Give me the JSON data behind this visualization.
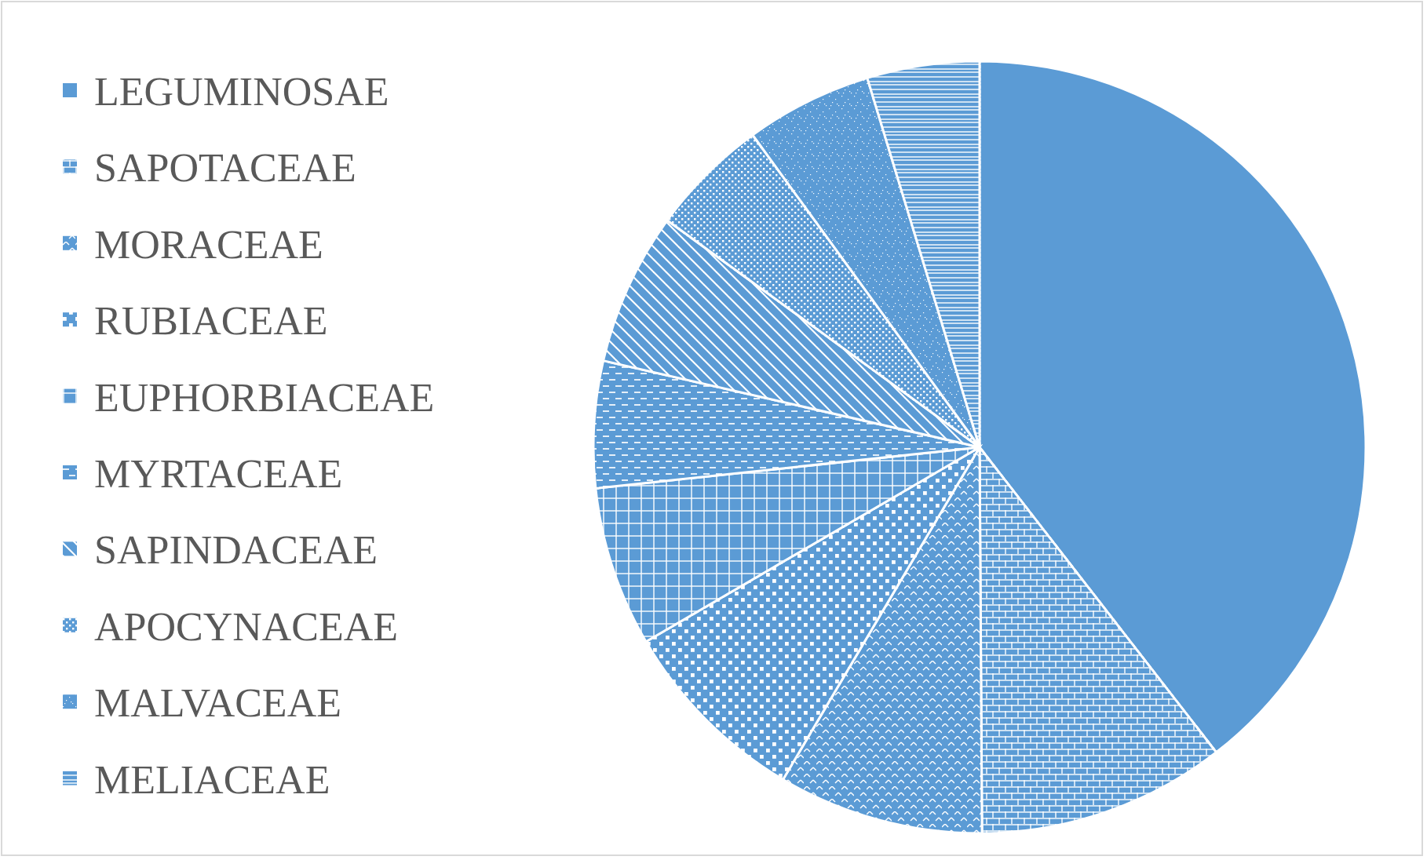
{
  "chart_data": {
    "type": "pie",
    "legend": "left",
    "categories": [
      "LEGUMINOSAE",
      "SAPOTACEAE",
      "MORACEAE",
      "RUBIACEAE",
      "EUPHORBIACEAE",
      "MYRTACEAE",
      "SAPINDACEAE",
      "APOCYNACEAE",
      "MALVACEAE",
      "MELIACEAE"
    ],
    "values": [
      39.5,
      10.4,
      8.6,
      8.1,
      6.7,
      5.3,
      6.4,
      5.0,
      5.3,
      4.7
    ],
    "colors": [
      "#5b9bd5",
      "#5b9bd5",
      "#5b9bd5",
      "#5b9bd5",
      "#5b9bd5",
      "#5b9bd5",
      "#5b9bd5",
      "#5b9bd5",
      "#5b9bd5",
      "#5b9bd5"
    ]
  }
}
